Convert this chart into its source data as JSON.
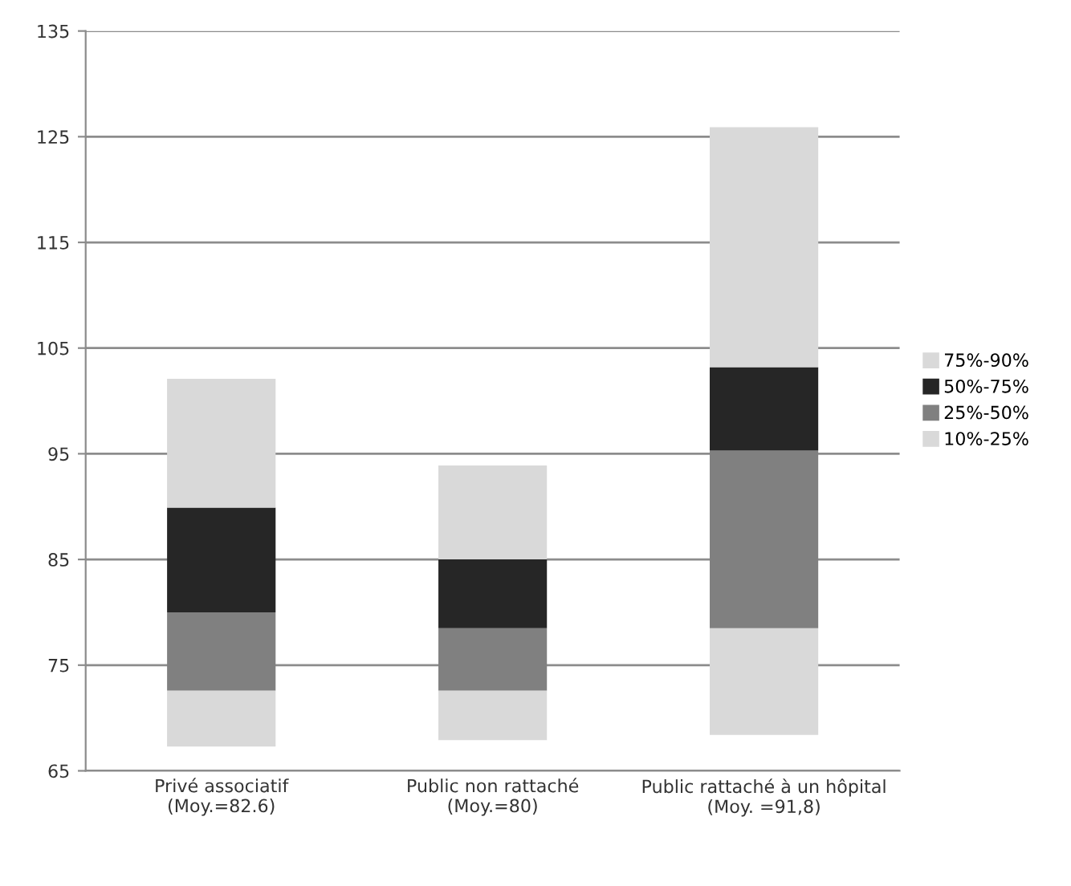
{
  "chart_data": {
    "type": "bar",
    "categories": [
      "Privé associatif\n(Moy.=82.6)",
      "Public non rattaché\n(Moy.=80)",
      "Public rattaché à un hôpital\n(Moy. =91,8)"
    ],
    "series": [
      {
        "name": "10%-25%",
        "color": "#d9d9d9",
        "base": [
          67.3,
          67.9,
          68.4
        ],
        "values": [
          5.3,
          4.7,
          10.1
        ]
      },
      {
        "name": "25%-50%",
        "color": "#808080",
        "base": [
          72.6,
          72.6,
          78.5
        ],
        "values": [
          7.4,
          5.9,
          16.8
        ]
      },
      {
        "name": "50%-75%",
        "color": "#262626",
        "base": [
          80.0,
          78.5,
          95.3
        ],
        "values": [
          9.9,
          6.5,
          7.9
        ]
      },
      {
        "name": "75%-90%",
        "color": "#d9d9d9",
        "base": [
          89.9,
          85.0,
          103.2
        ],
        "values": [
          12.2,
          8.9,
          22.7
        ]
      }
    ],
    "ylim": [
      65,
      135
    ],
    "yticks": [
      65,
      75,
      85,
      95,
      105,
      115,
      125,
      135
    ],
    "grid": "y",
    "legend": "right"
  }
}
